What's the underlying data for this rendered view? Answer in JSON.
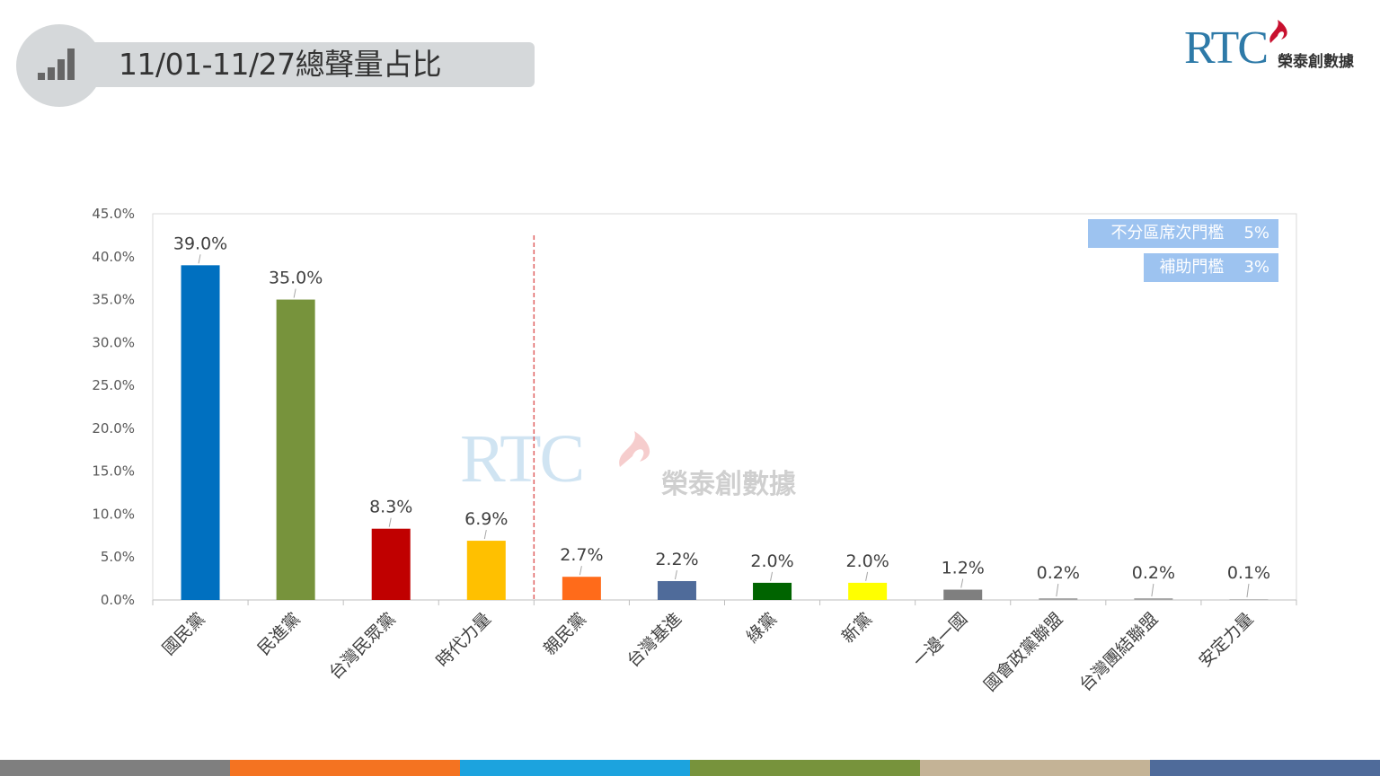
{
  "header": {
    "title": "11/01-11/27總聲量占比",
    "icon": "bar-chart-icon"
  },
  "logo": {
    "brand": "RTC",
    "name_cn": "榮泰創數據"
  },
  "watermark": {
    "brand": "RTC",
    "name_cn": "榮泰創數據"
  },
  "legend": [
    {
      "label": "不分區席次門檻",
      "value": "5%"
    },
    {
      "label": "補助門檻",
      "value": "3%"
    }
  ],
  "chart_data": {
    "type": "bar",
    "categories": [
      "國民黨",
      "民進黨",
      "台灣民眾黨",
      "時代力量",
      "親民黨",
      "台灣基進",
      "綠黨",
      "新黨",
      "一邊一國",
      "國會政黨聯盟",
      "台灣團結聯盟",
      "安定力量"
    ],
    "values": [
      39.0,
      35.0,
      8.3,
      6.9,
      2.7,
      2.2,
      2.0,
      2.0,
      1.2,
      0.2,
      0.2,
      0.1
    ],
    "value_labels": [
      "39.0%",
      "35.0%",
      "8.3%",
      "6.9%",
      "2.7%",
      "2.2%",
      "2.0%",
      "2.0%",
      "1.2%",
      "0.2%",
      "0.2%",
      "0.1%"
    ],
    "colors": [
      "#0070c0",
      "#77933c",
      "#c00000",
      "#ffc000",
      "#ff6b1a",
      "#4f6b9a",
      "#006400",
      "#ffff00",
      "#7f7f7f",
      "#a6a6a6",
      "#a6a6a6",
      "#bfbfbf"
    ],
    "ylim": [
      0,
      45
    ],
    "yticks": [
      "0.0%",
      "5.0%",
      "10.0%",
      "15.0%",
      "20.0%",
      "25.0%",
      "30.0%",
      "35.0%",
      "40.0%",
      "45.0%"
    ],
    "divider_after_index": 3,
    "divider_color": "#e06060",
    "grid": false,
    "legend_position": "top-right"
  },
  "footer_colors": [
    "#7f7f7f",
    "#f47321",
    "#1ca3de",
    "#77933c",
    "#c4b396",
    "#4f6b9a"
  ]
}
